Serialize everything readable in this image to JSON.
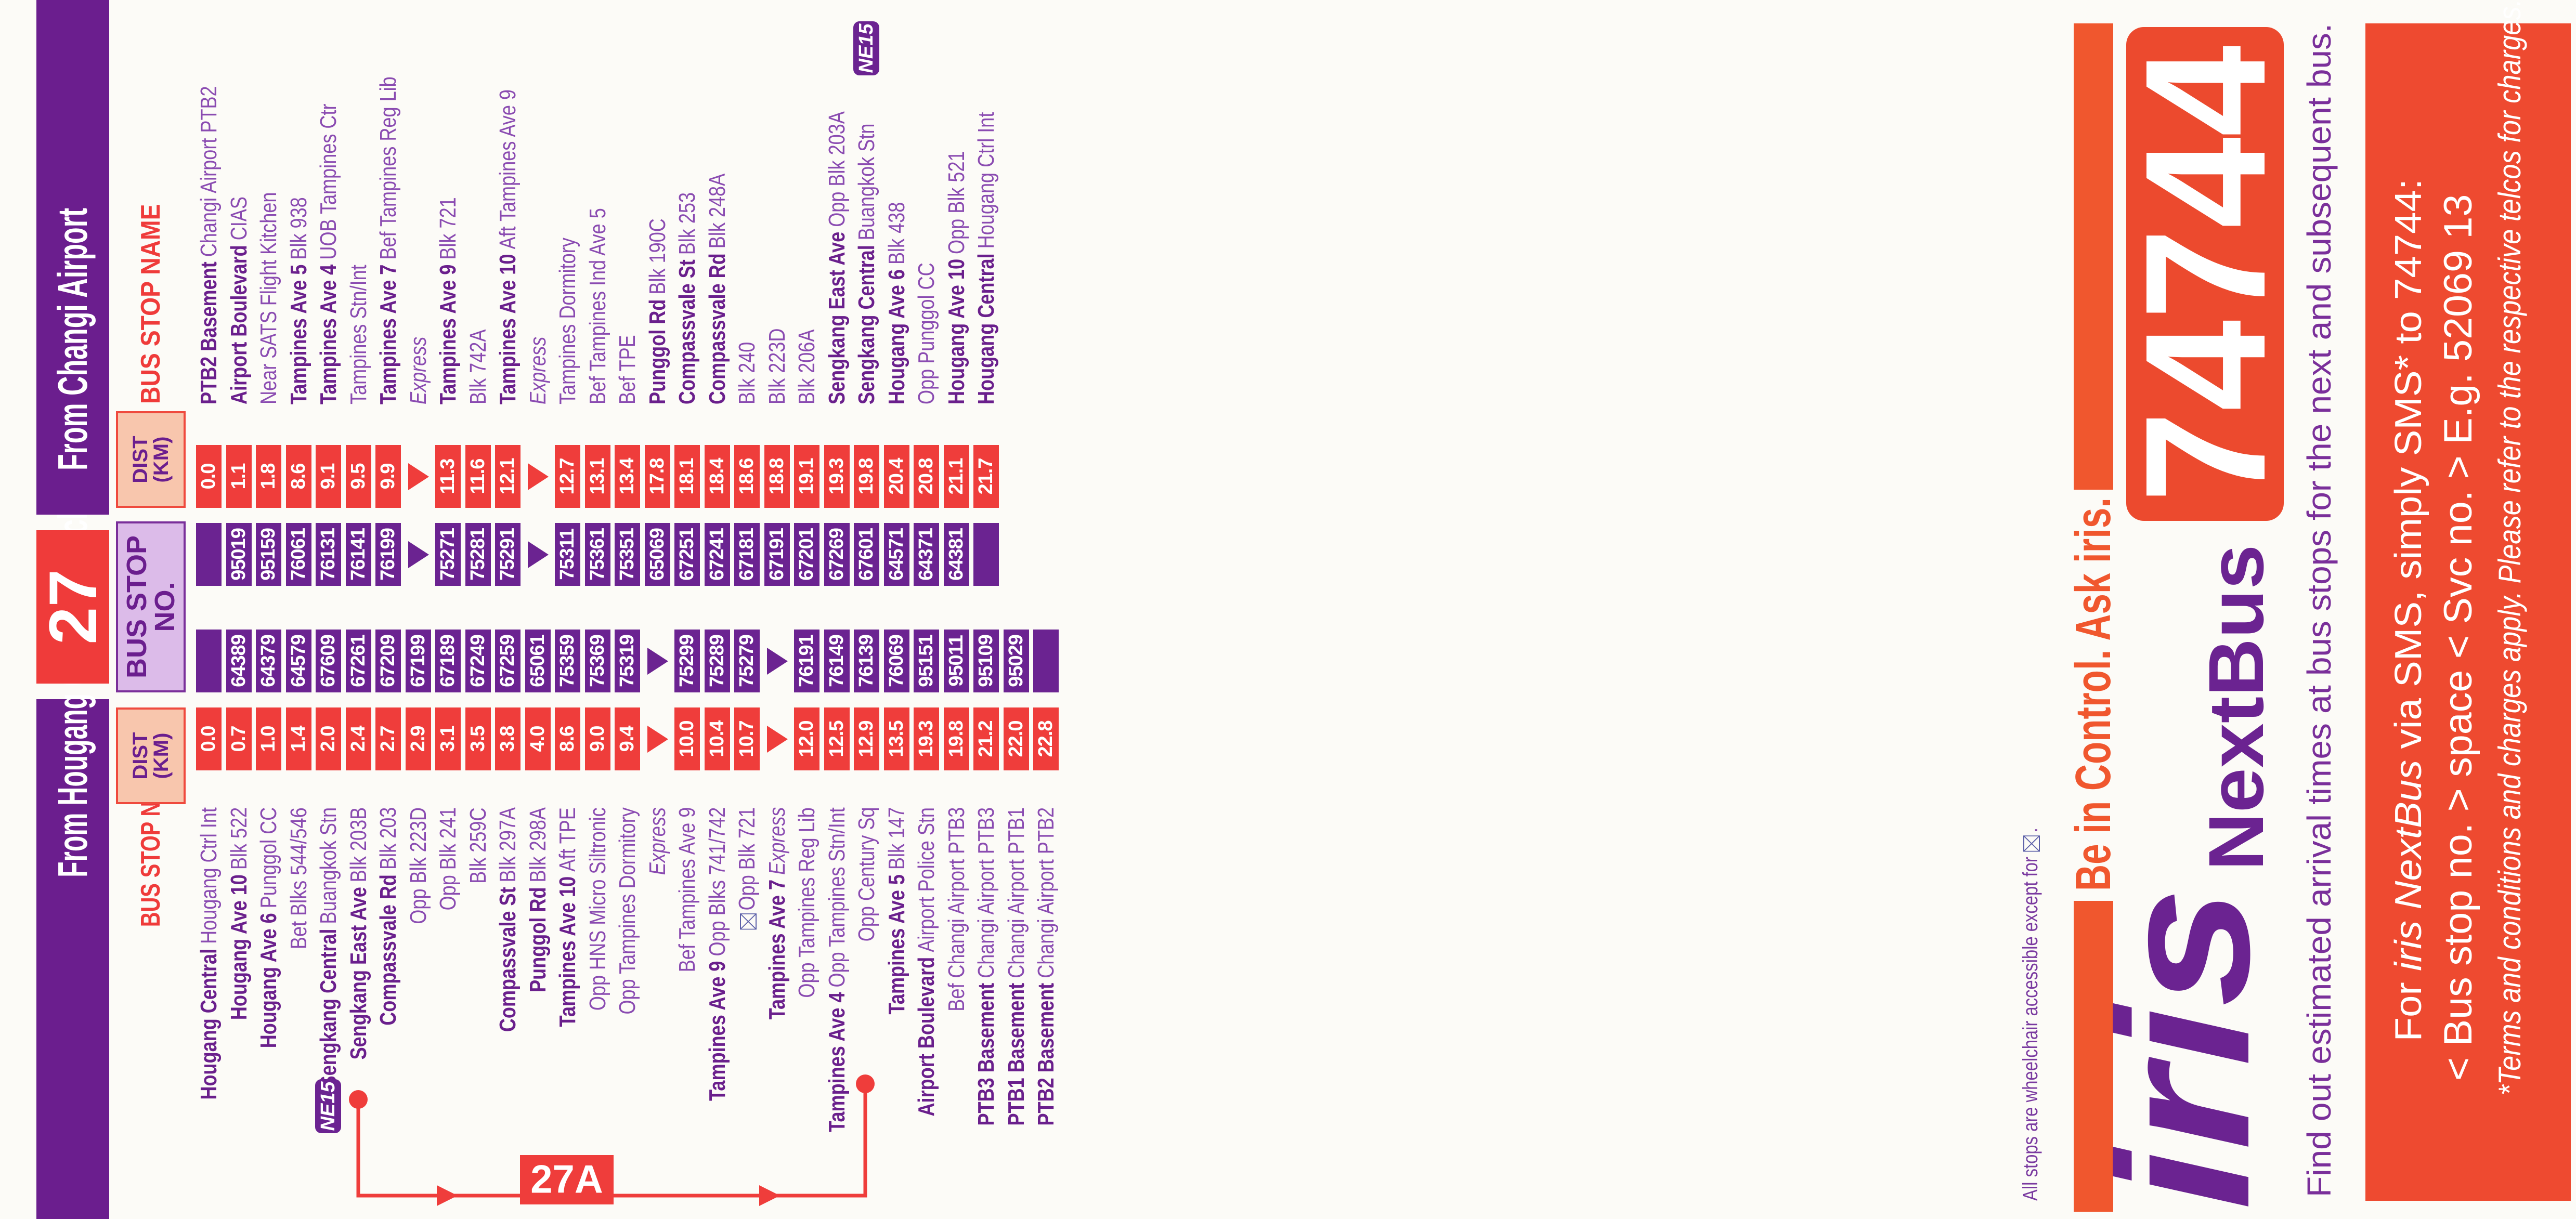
{
  "service_number": "27",
  "stop_no_header": {
    "line1": "BUS STOP",
    "line2": "NO."
  },
  "left_table": {
    "title": "From Hougang Central Interchange",
    "name_header": "BUS STOP NAME",
    "dist_header": {
      "line1": "DIST",
      "line2": "(KM)"
    },
    "rows": [
      {
        "bold": "Hougang Central",
        "rest": "Hougang Ctrl Int",
        "dist": "0.0",
        "stop": ""
      },
      {
        "bold": "Hougang Ave 10",
        "rest": "Blk 522",
        "dist": "0.7",
        "stop": "64389"
      },
      {
        "bold": "Hougang Ave 6",
        "rest": "Punggol CC",
        "dist": "1.0",
        "stop": "64379"
      },
      {
        "rest": "Bet Blks 544/546",
        "dist": "1.4",
        "stop": "64579"
      },
      {
        "bold": "Sengkang Central",
        "rest": "Buangkok Stn",
        "dist": "2.0",
        "stop": "67609",
        "ne15": true
      },
      {
        "bold": "Sengkang East Ave",
        "rest": "Blk 203B",
        "dist": "2.4",
        "stop": "67261"
      },
      {
        "bold": "Compassvale Rd",
        "rest": "Blk 203",
        "dist": "2.7",
        "stop": "67209"
      },
      {
        "rest": "Opp Blk 223D",
        "dist": "2.9",
        "stop": "67199"
      },
      {
        "rest": "Opp Blk 241",
        "dist": "3.1",
        "stop": "67189"
      },
      {
        "rest": "Blk 259C",
        "dist": "3.5",
        "stop": "67249"
      },
      {
        "bold": "Compassvale St",
        "rest": "Blk 297A",
        "dist": "3.8",
        "stop": "67259"
      },
      {
        "bold": "Punggol Rd",
        "rest": "Blk 298A",
        "dist": "4.0",
        "stop": "65061"
      },
      {
        "bold": "Tampines Ave 10",
        "rest": "Aft TPE",
        "dist": "8.6",
        "stop": "75359"
      },
      {
        "rest": "Opp HNS Micro Siltronic",
        "dist": "9.0",
        "stop": "75369"
      },
      {
        "rest": "Opp Tampines Dormitory",
        "dist": "9.4",
        "stop": "75319"
      },
      {
        "rest": "Express",
        "italic": true,
        "arrow": true
      },
      {
        "rest": "Bef Tampines Ave 9",
        "dist": "10.0",
        "stop": "75299"
      },
      {
        "bold": "Tampines Ave 9",
        "rest": "Opp Blks 741/742",
        "dist": "10.4",
        "stop": "75289"
      },
      {
        "rest": "Opp Blk 721",
        "wheelchair_inaccessible": true,
        "dist": "10.7",
        "stop": "75279"
      },
      {
        "bold": "Tampines Ave 7",
        "rest": "Express",
        "italic": true,
        "arrow": true
      },
      {
        "rest": "Opp Tampines Reg Lib",
        "dist": "12.0",
        "stop": "76191"
      },
      {
        "bold": "Tampines Ave 4",
        "rest": "Opp Tampines Stn/Int",
        "dist": "12.5",
        "stop": "76149"
      },
      {
        "rest": "Opp Century Sq",
        "dist": "12.9",
        "stop": "76139"
      },
      {
        "bold": "Tampines Ave 5",
        "rest": "Blk 147",
        "dist": "13.5",
        "stop": "76069"
      },
      {
        "bold": "Airport Boulevard",
        "rest": "Airport Police Stn",
        "dist": "19.3",
        "stop": "95151"
      },
      {
        "rest": "Bef Changi Airport PTB3",
        "dist": "19.8",
        "stop": "95011"
      },
      {
        "bold": "PTB3 Basement",
        "rest": "Changi Airport PTB3",
        "dist": "21.2",
        "stop": "95109"
      },
      {
        "bold": "PTB1 Basement",
        "rest": "Changi Airport PTB1",
        "dist": "22.0",
        "stop": "95029"
      },
      {
        "bold": "PTB2 Basement",
        "rest": "Changi Airport PTB2",
        "dist": "22.8",
        "stop": ""
      }
    ]
  },
  "right_table": {
    "title": "From Changi Airport",
    "name_header": "BUS STOP NAME",
    "dist_header": {
      "line1": "DIST",
      "line2": "(KM)"
    },
    "rows": [
      {
        "bold": "PTB2 Basement",
        "rest": "Changi Airport PTB2",
        "dist": "0.0",
        "stop": ""
      },
      {
        "bold": "Airport Boulevard",
        "rest": "CIAS",
        "dist": "1.1",
        "stop": "95019"
      },
      {
        "rest": "Near SATS Flight Kitchen",
        "dist": "1.8",
        "stop": "95159"
      },
      {
        "bold": "Tampines Ave 5",
        "rest": "Blk 938",
        "dist": "8.6",
        "stop": "76061"
      },
      {
        "bold": "Tampines Ave 4",
        "rest": "UOB Tampines Ctr",
        "dist": "9.1",
        "stop": "76131"
      },
      {
        "rest": "Tampines Stn/Int",
        "dist": "9.5",
        "stop": "76141"
      },
      {
        "bold": "Tampines Ave 7",
        "rest": "Bef Tampines Reg Lib",
        "dist": "9.9",
        "stop": "76199"
      },
      {
        "rest": "Express",
        "italic": true,
        "arrow": true
      },
      {
        "bold": "Tampines Ave 9",
        "rest": "Blk 721",
        "dist": "11.3",
        "stop": "75271"
      },
      {
        "rest": "Blk 742A",
        "dist": "11.6",
        "stop": "75281"
      },
      {
        "bold": "Tampines Ave 10",
        "rest": "Aft Tampines Ave 9",
        "dist": "12.1",
        "stop": "75291"
      },
      {
        "rest": "Express",
        "italic": true,
        "arrow": true
      },
      {
        "rest": "Tampines Dormitory",
        "dist": "12.7",
        "stop": "75311"
      },
      {
        "rest": "Bef Tampines Ind Ave 5",
        "dist": "13.1",
        "stop": "75361"
      },
      {
        "rest": "Bef TPE",
        "dist": "13.4",
        "stop": "75351"
      },
      {
        "bold": "Punggol Rd",
        "rest": "Blk 190C",
        "dist": "17.8",
        "stop": "65069"
      },
      {
        "bold": "Compassvale St",
        "rest": "Blk 253",
        "dist": "18.1",
        "stop": "67251"
      },
      {
        "bold": "Compassvale Rd",
        "rest": "Blk 248A",
        "dist": "18.4",
        "stop": "67241"
      },
      {
        "rest": "Blk 240",
        "dist": "18.6",
        "stop": "67181"
      },
      {
        "rest": "Blk 223D",
        "dist": "18.8",
        "stop": "67191"
      },
      {
        "rest": "Blk 206A",
        "dist": "19.1",
        "stop": "67201"
      },
      {
        "bold": "Sengkang East Ave",
        "rest": "Opp Blk 203A",
        "dist": "19.3",
        "stop": "67269"
      },
      {
        "bold": "Sengkang Central",
        "rest": "Buangkok Stn",
        "dist": "19.8",
        "stop": "67601",
        "ne15": true
      },
      {
        "bold": "Hougang Ave 6",
        "rest": "Blk 438",
        "dist": "20.4",
        "stop": "64571"
      },
      {
        "rest": "Opp Punggol CC",
        "dist": "20.8",
        "stop": "64371"
      },
      {
        "bold": "Hougang Ave 10",
        "rest": "Opp Blk 521",
        "dist": "21.1",
        "stop": "64381"
      },
      {
        "bold": "Hougang Central",
        "rest": "Hougang Ctrl Int",
        "dist": "21.7",
        "stop": ""
      }
    ]
  },
  "mrt_badge": "NE15",
  "route_27a": {
    "label": "27A"
  },
  "wheelchair_note": {
    "text": "All stops are wheelchair accessible except for",
    "suffix": ".",
    "icon": "wheelchair-inaccessible-box-icon"
  },
  "ad": {
    "tagline": "Be in Control. Ask iris.",
    "logo_iris": "iris",
    "logo_nextbus": "NextBus",
    "sms_number": "74744",
    "description": "Find out estimated arrival times at bus stops for the next and subsequent bus.",
    "panel": {
      "line1_prefix": "For ",
      "line1_brand": "iris NextBus",
      "line1_suffix": " via SMS, simply SMS* to 74744:",
      "line2": "< Bus stop no. > space < Svc no. > E.g. 52069 13",
      "terms": "*Terms and conditions and charges apply. Please refer to the respective telcos for charges."
    }
  },
  "colors": {
    "purple": "#6b1e8e",
    "red": "#ef3d3b",
    "orange": "#ee4a2e",
    "dist_header_fill": "#f8c6ad",
    "stop_header_fill": "#dcbbe9"
  }
}
